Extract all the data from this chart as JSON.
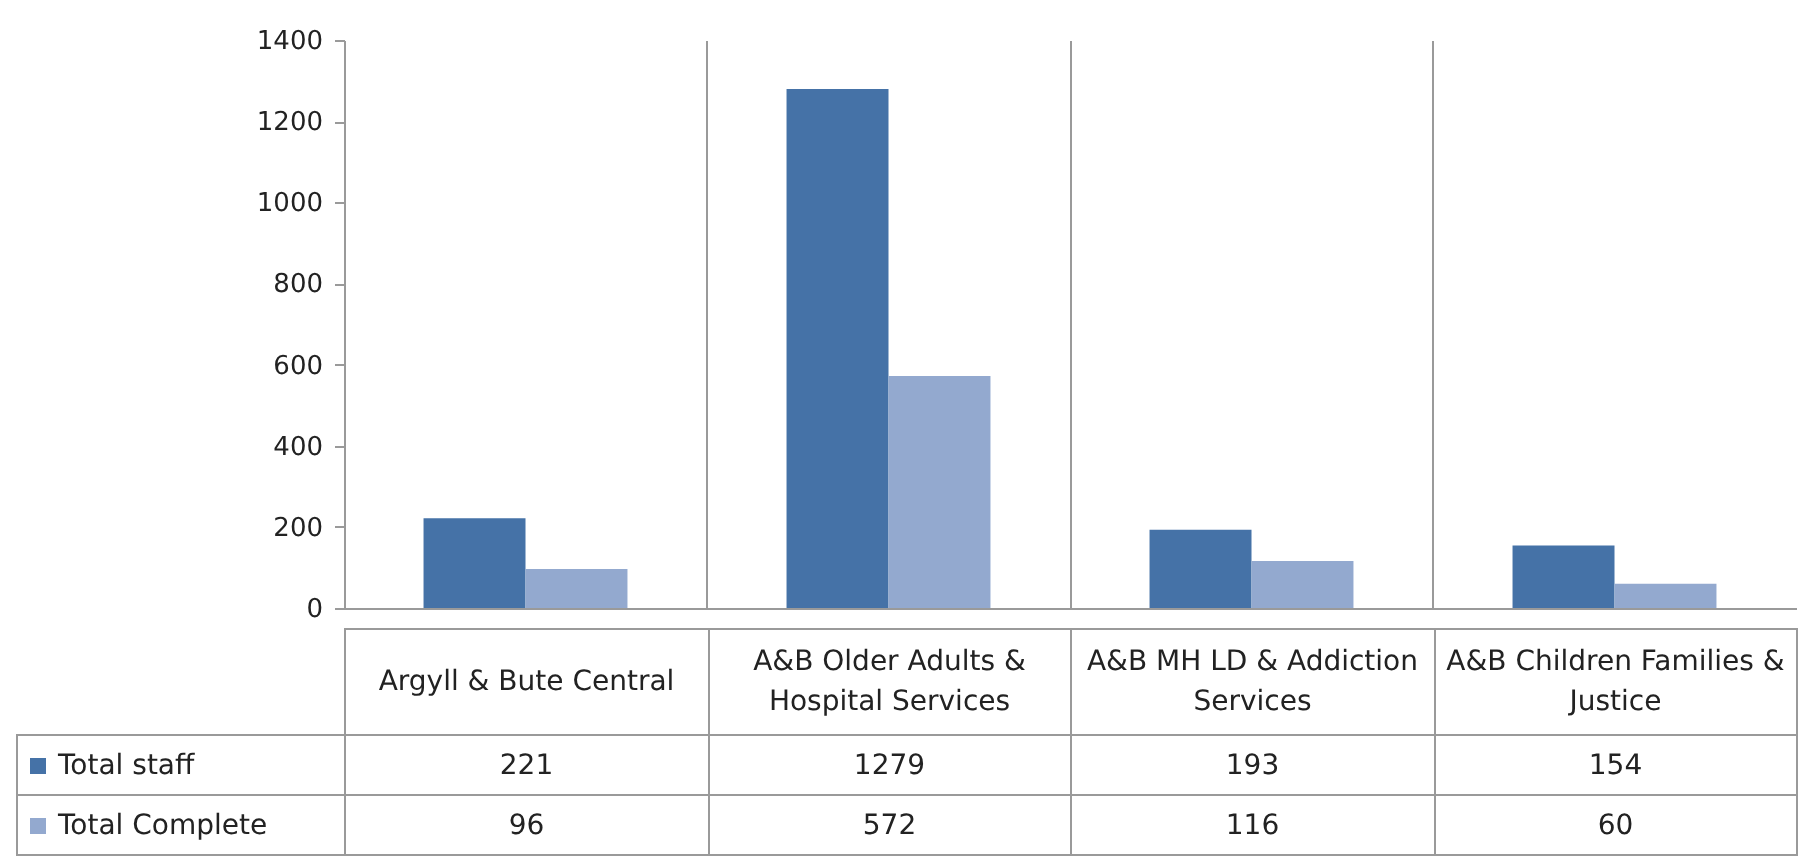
{
  "chart_data": {
    "type": "bar",
    "categories": [
      "Argyll & Bute Central",
      "A&B Older Adults & Hospital Services",
      "A&B MH LD & Addiction Services",
      "A&B Children Families & Justice"
    ],
    "series": [
      {
        "name": "Total staff",
        "color": "#4572a7",
        "values": [
          221,
          1279,
          193,
          154
        ]
      },
      {
        "name": "Total Complete",
        "color": "#93a9cf",
        "values": [
          96,
          572,
          116,
          60
        ]
      }
    ],
    "ylim": [
      0,
      1400
    ],
    "yticks": [
      0,
      200,
      400,
      600,
      800,
      1000,
      1200,
      1400
    ],
    "grid": "x",
    "legend": "bottom left",
    "data_labels": true
  }
}
